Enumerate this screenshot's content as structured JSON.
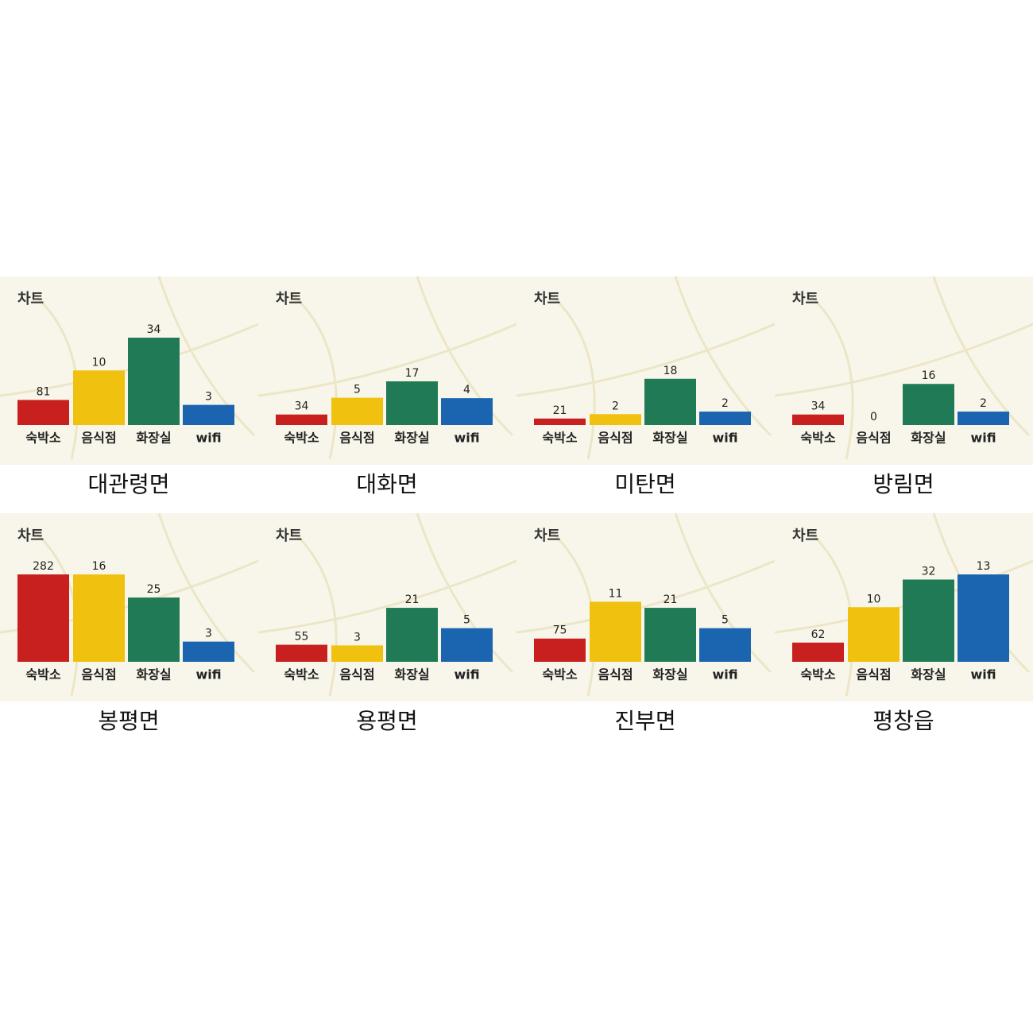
{
  "chart_data": [
    {
      "type": "bar",
      "title": "차트",
      "caption": "대관령면",
      "categories": [
        "숙박소",
        "음식점",
        "화장실",
        "wifi"
      ],
      "values": [
        81,
        10,
        34,
        3
      ],
      "colors": [
        "#c8201f",
        "#f0c20f",
        "#217a56",
        "#1b64b0"
      ]
    },
    {
      "type": "bar",
      "title": "차트",
      "caption": "대화면",
      "categories": [
        "숙박소",
        "음식점",
        "화장실",
        "wifi"
      ],
      "values": [
        34,
        5,
        17,
        4
      ],
      "colors": [
        "#c8201f",
        "#f0c20f",
        "#217a56",
        "#1b64b0"
      ]
    },
    {
      "type": "bar",
      "title": "차트",
      "caption": "미탄면",
      "categories": [
        "숙박소",
        "음식점",
        "화장실",
        "wifi"
      ],
      "values": [
        21,
        2,
        18,
        2
      ],
      "colors": [
        "#c8201f",
        "#f0c20f",
        "#217a56",
        "#1b64b0"
      ]
    },
    {
      "type": "bar",
      "title": "차트",
      "caption": "방림면",
      "categories": [
        "숙박소",
        "음식점",
        "화장실",
        "wifi"
      ],
      "values": [
        34,
        0,
        16,
        2
      ],
      "colors": [
        "#c8201f",
        "#f0c20f",
        "#217a56",
        "#1b64b0"
      ]
    },
    {
      "type": "bar",
      "title": "차트",
      "caption": "봉평면",
      "categories": [
        "숙박소",
        "음식점",
        "화장실",
        "wifi"
      ],
      "values": [
        282,
        16,
        25,
        3
      ],
      "colors": [
        "#c8201f",
        "#f0c20f",
        "#217a56",
        "#1b64b0"
      ]
    },
    {
      "type": "bar",
      "title": "차트",
      "caption": "용평면",
      "categories": [
        "숙박소",
        "음식점",
        "화장실",
        "wifi"
      ],
      "values": [
        55,
        3,
        21,
        5
      ],
      "colors": [
        "#c8201f",
        "#f0c20f",
        "#217a56",
        "#1b64b0"
      ]
    },
    {
      "type": "bar",
      "title": "차트",
      "caption": "진부면",
      "categories": [
        "숙박소",
        "음식점",
        "화장실",
        "wifi"
      ],
      "values": [
        75,
        11,
        21,
        5
      ],
      "colors": [
        "#c8201f",
        "#f0c20f",
        "#217a56",
        "#1b64b0"
      ]
    },
    {
      "type": "bar",
      "title": "차트",
      "caption": "평창읍",
      "categories": [
        "숙박소",
        "음식점",
        "화장실",
        "wifi"
      ],
      "values": [
        62,
        10,
        32,
        13
      ],
      "colors": [
        "#c8201f",
        "#f0c20f",
        "#217a56",
        "#1b64b0"
      ]
    }
  ]
}
